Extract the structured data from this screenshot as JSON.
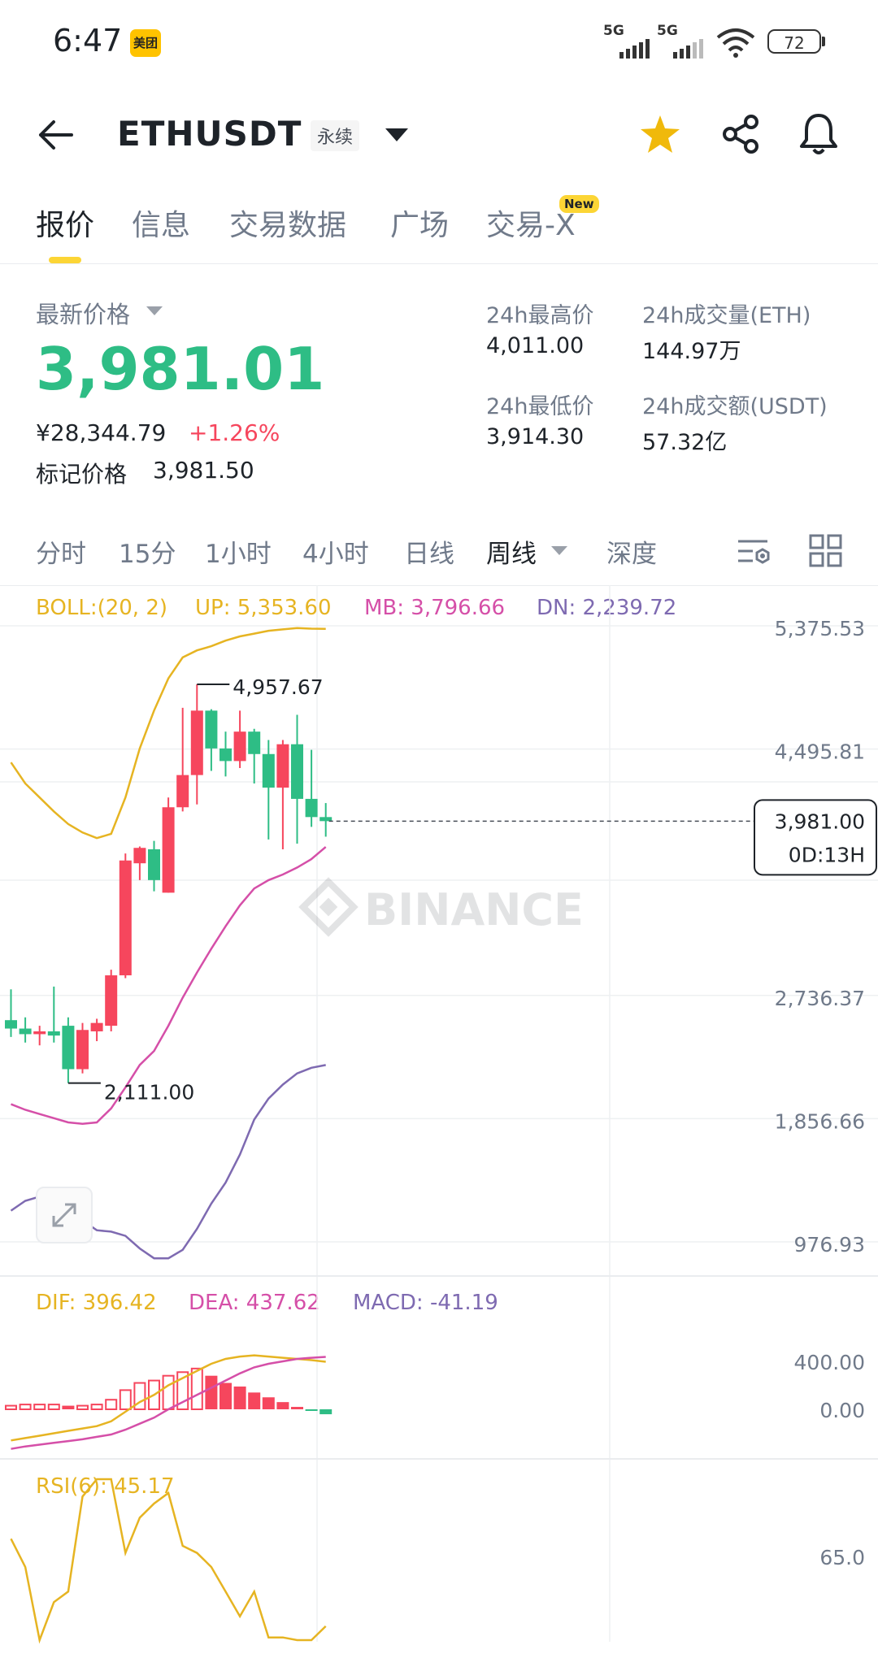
{
  "status": {
    "time": "6:47",
    "app_badge": "美团",
    "signal_1": "5G",
    "signal_2": "5G",
    "battery": "72"
  },
  "header": {
    "pair": "ETHUSDT",
    "contract_type": "永续"
  },
  "tabs": [
    {
      "label": "报价",
      "active": true
    },
    {
      "label": "信息",
      "active": false
    },
    {
      "label": "交易数据",
      "active": false
    },
    {
      "label": "广场",
      "active": false
    },
    {
      "label": "交易-X",
      "active": false,
      "badge": "New"
    }
  ],
  "price": {
    "label": "最新价格",
    "last": "3,981.01",
    "cny": "¥28,344.79",
    "change": "+1.26%",
    "mark_label": "标记价格",
    "mark_value": "3,981.50"
  },
  "stats": {
    "high_label": "24h最高价",
    "high": "4,011.00",
    "low_label": "24h最低价",
    "low": "3,914.30",
    "vol_eth_label": "24h成交量(ETH)",
    "vol_eth": "144.97万",
    "vol_usdt_label": "24h成交额(USDT)",
    "vol_usdt": "57.32亿"
  },
  "timeframes": [
    {
      "label": "分时",
      "active": false
    },
    {
      "label": "15分",
      "active": false
    },
    {
      "label": "1小时",
      "active": false
    },
    {
      "label": "4小时",
      "active": false
    },
    {
      "label": "日线",
      "active": false
    },
    {
      "label": "周线",
      "active": true
    },
    {
      "label": "深度",
      "active": false
    }
  ],
  "indicators": {
    "boll_name": "BOLL:(20, 2)",
    "boll_up": "UP: 5,353.60",
    "boll_mb": "MB: 3,796.66",
    "boll_dn": "DN: 2,239.72",
    "dif": "DIF: 396.42",
    "dea": "DEA: 437.62",
    "macd": "MACD: -41.19",
    "rsi": "RSI(6): 45.17"
  },
  "chart": {
    "watermark": "BINANCE",
    "high_marker": "4,957.67",
    "low_marker": "2,111.00",
    "current_price": "3,981.00",
    "countdown": "0D:13H"
  },
  "chart_data": {
    "type": "candlestick",
    "interval": "weekly",
    "y_ticks": [
      "5,375.53",
      "4,495.81",
      "2,736.37",
      "1,856.66",
      "976.93"
    ],
    "candles": [
      {
        "o": 2560,
        "h": 2780,
        "l": 2440,
        "c": 2500
      },
      {
        "o": 2500,
        "h": 2580,
        "l": 2400,
        "c": 2460
      },
      {
        "o": 2460,
        "h": 2520,
        "l": 2380,
        "c": 2480
      },
      {
        "o": 2480,
        "h": 2800,
        "l": 2400,
        "c": 2450
      },
      {
        "o": 2520,
        "h": 2580,
        "l": 2111,
        "c": 2210
      },
      {
        "o": 2210,
        "h": 2540,
        "l": 2180,
        "c": 2490
      },
      {
        "o": 2480,
        "h": 2570,
        "l": 2410,
        "c": 2540
      },
      {
        "o": 2520,
        "h": 2920,
        "l": 2480,
        "c": 2880
      },
      {
        "o": 2880,
        "h": 3750,
        "l": 2860,
        "c": 3700
      },
      {
        "o": 3680,
        "h": 3800,
        "l": 3560,
        "c": 3790
      },
      {
        "o": 3780,
        "h": 3840,
        "l": 3480,
        "c": 3560
      },
      {
        "o": 3470,
        "h": 4150,
        "l": 3470,
        "c": 4080
      },
      {
        "o": 4080,
        "h": 4790,
        "l": 4050,
        "c": 4310
      },
      {
        "o": 4310,
        "h": 4957.67,
        "l": 4100,
        "c": 4770
      },
      {
        "o": 4770,
        "h": 4780,
        "l": 4340,
        "c": 4500
      },
      {
        "o": 4500,
        "h": 4620,
        "l": 4300,
        "c": 4410
      },
      {
        "o": 4410,
        "h": 4770,
        "l": 4360,
        "c": 4620
      },
      {
        "o": 4620,
        "h": 4640,
        "l": 4250,
        "c": 4460
      },
      {
        "o": 4460,
        "h": 4560,
        "l": 3850,
        "c": 4220
      },
      {
        "o": 4220,
        "h": 4560,
        "l": 3780,
        "c": 4530
      },
      {
        "o": 4530,
        "h": 4740,
        "l": 3820,
        "c": 4140
      },
      {
        "o": 4140,
        "h": 4490,
        "l": 3940,
        "c": 4010
      },
      {
        "o": 4010,
        "h": 4110,
        "l": 3870,
        "c": 3981
      }
    ],
    "boll_up": [
      4400,
      4250,
      4150,
      4050,
      3960,
      3900,
      3860,
      3890,
      4150,
      4500,
      4770,
      5000,
      5150,
      5200,
      5230,
      5270,
      5300,
      5320,
      5340,
      5350,
      5360,
      5355,
      5353.6
    ],
    "boll_mb": [
      1960,
      1920,
      1890,
      1860,
      1830,
      1820,
      1830,
      1930,
      2080,
      2240,
      2340,
      2520,
      2720,
      2900,
      3070,
      3230,
      3380,
      3500,
      3560,
      3600,
      3650,
      3710,
      3796.66
    ],
    "boll_dn": [
      1200,
      1270,
      1300,
      1330,
      1290,
      1130,
      1060,
      1050,
      1020,
      930,
      860,
      860,
      920,
      1070,
      1250,
      1400,
      1600,
      1850,
      2000,
      2100,
      2180,
      2220,
      2239.72
    ],
    "macd_ticks": [
      "400.00",
      "0.00"
    ],
    "dif": [
      -260,
      -240,
      -220,
      -200,
      -180,
      -160,
      -140,
      -100,
      -20,
      60,
      120,
      200,
      260,
      320,
      380,
      420,
      440,
      450,
      440,
      430,
      420,
      410,
      396.42
    ],
    "dea": [
      -330,
      -310,
      -295,
      -280,
      -265,
      -250,
      -230,
      -210,
      -170,
      -120,
      -70,
      0,
      60,
      120,
      180,
      240,
      300,
      350,
      380,
      400,
      420,
      430,
      437.62
    ],
    "hist": [
      30,
      40,
      40,
      40,
      30,
      30,
      40,
      80,
      160,
      220,
      240,
      280,
      310,
      340,
      280,
      220,
      190,
      140,
      100,
      60,
      20,
      -10,
      -41.19
    ],
    "rsi_ticks": [
      "65.0"
    ],
    "rsi": [
      70,
      62,
      30,
      52,
      55,
      82,
      90,
      90,
      66,
      76,
      80,
      83,
      68,
      66,
      62,
      55,
      48,
      55,
      42,
      42,
      41,
      40,
      45.17
    ]
  },
  "colors": {
    "up": "#f6465d",
    "down": "#2ebd85",
    "boll_up": "#e6b422",
    "boll_mb": "#d54fa8",
    "boll_dn": "#7e6ab1",
    "dif": "#e6b422",
    "dea": "#d54fa8",
    "macd": "#7e6ab1",
    "rsi": "#e6b422",
    "accent": "#fcd535"
  }
}
